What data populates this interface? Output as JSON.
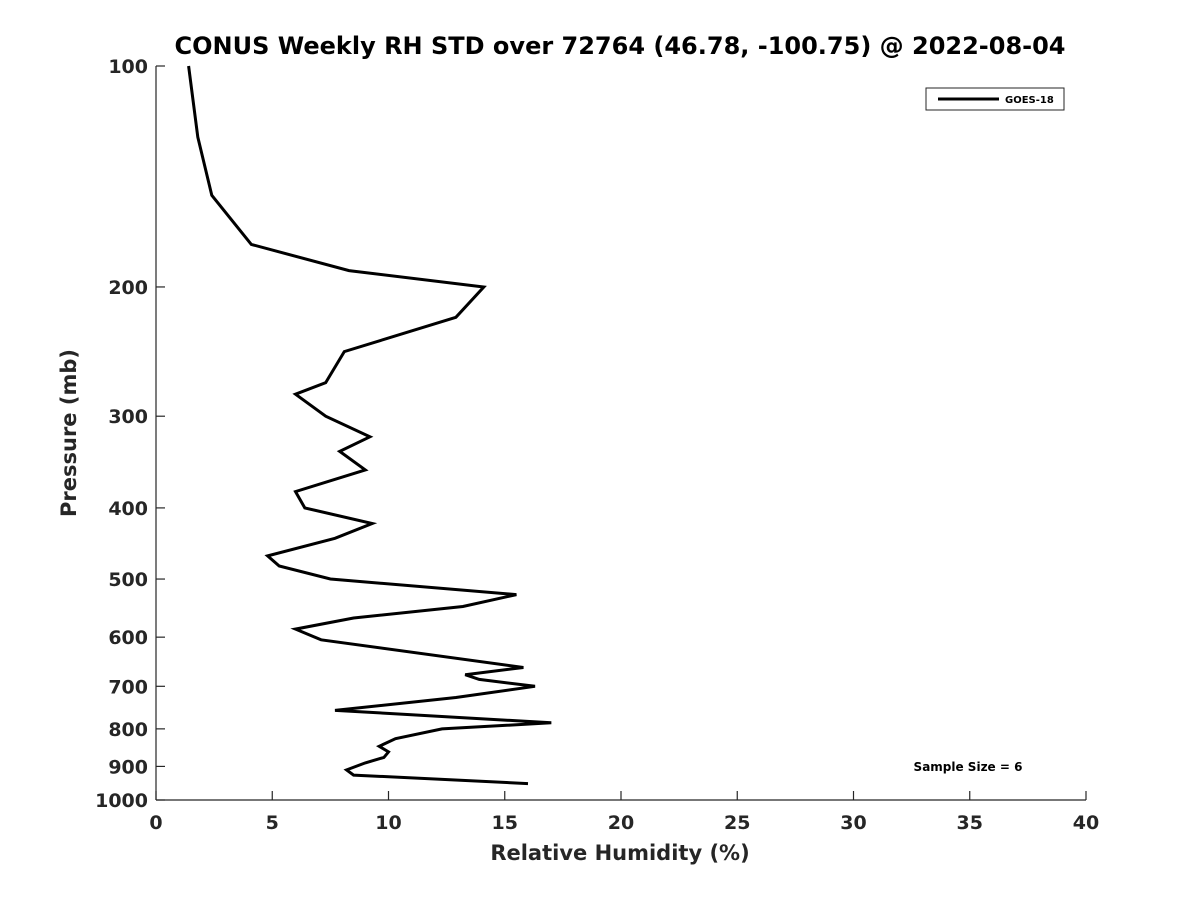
{
  "chart_data": {
    "type": "line",
    "title": "CONUS Weekly RH STD over 72764 (46.78, -100.75) @ 2022-08-04",
    "xlabel": "Relative Humidity (%)",
    "ylabel": "Pressure (mb)",
    "xlim": [
      0,
      40
    ],
    "ylim": [
      100,
      1000
    ],
    "y_scale": "log",
    "y_reversed": true,
    "x_ticks": [
      0,
      5,
      10,
      15,
      20,
      25,
      30,
      35,
      40
    ],
    "x_tick_labels": [
      "0",
      "5",
      "10",
      "15",
      "20",
      "25",
      "30",
      "35",
      "40"
    ],
    "y_ticks": [
      100,
      200,
      300,
      400,
      500,
      600,
      700,
      800,
      900,
      1000
    ],
    "y_tick_labels": [
      "100",
      "200",
      "300",
      "400",
      "500",
      "600",
      "700",
      "800",
      "900",
      "1000"
    ],
    "legend": {
      "position": "top-right",
      "entries": [
        "GOES-18"
      ]
    },
    "annotation": "Sample Size = 6",
    "series": [
      {
        "name": "GOES-18",
        "color": "#000000",
        "points": [
          [
            1.4,
            100
          ],
          [
            1.8,
            125
          ],
          [
            2.4,
            150
          ],
          [
            4.1,
            175
          ],
          [
            8.3,
            190
          ],
          [
            14.1,
            200
          ],
          [
            12.9,
            220
          ],
          [
            8.1,
            245
          ],
          [
            7.3,
            270
          ],
          [
            6.0,
            280
          ],
          [
            7.3,
            300
          ],
          [
            9.2,
            320
          ],
          [
            7.9,
            335
          ],
          [
            9.0,
            355
          ],
          [
            6.0,
            380
          ],
          [
            6.4,
            400
          ],
          [
            9.3,
            420
          ],
          [
            7.7,
            440
          ],
          [
            4.8,
            465
          ],
          [
            5.3,
            480
          ],
          [
            7.5,
            500
          ],
          [
            15.5,
            525
          ],
          [
            13.2,
            545
          ],
          [
            8.5,
            565
          ],
          [
            6.0,
            585
          ],
          [
            7.1,
            605
          ],
          [
            15.8,
            660
          ],
          [
            13.3,
            675
          ],
          [
            13.9,
            685
          ],
          [
            16.3,
            700
          ],
          [
            12.9,
            725
          ],
          [
            7.7,
            755
          ],
          [
            10.9,
            765
          ],
          [
            17.0,
            785
          ],
          [
            12.3,
            800
          ],
          [
            10.3,
            825
          ],
          [
            9.6,
            845
          ],
          [
            10.0,
            860
          ],
          [
            9.8,
            875
          ],
          [
            9.0,
            890
          ],
          [
            8.2,
            910
          ],
          [
            8.5,
            925
          ],
          [
            16.0,
            950
          ]
        ]
      }
    ]
  }
}
